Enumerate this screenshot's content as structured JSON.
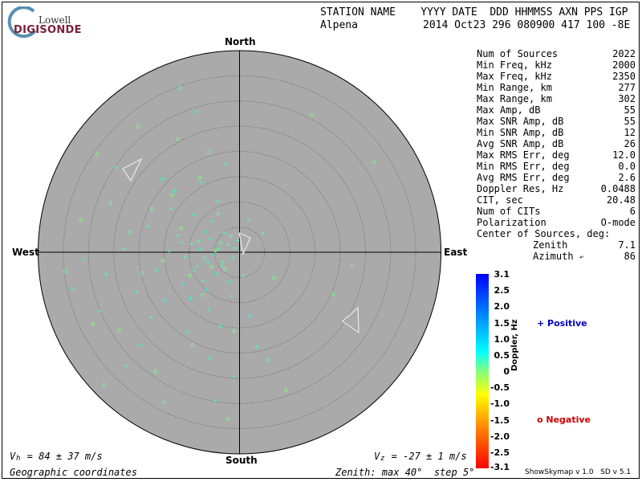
{
  "logo": {
    "top": "Lowell",
    "bottom": "DIGISONDE"
  },
  "header": {
    "line1": "STATION NAME    YYYY DATE  DDD HHMMSS AXN PPS IGP",
    "station": "Alpena",
    "line2_values": "2014 Oct23 296 080900 417 100 -8E"
  },
  "stats": [
    {
      "label": "Num of Sources",
      "value": "2022"
    },
    {
      "label": "Min Freq, kHz",
      "value": "2000"
    },
    {
      "label": "Max Freq, kHz",
      "value": "2350"
    },
    {
      "label": "Min Range, km",
      "value": "277"
    },
    {
      "label": "Max Range, km",
      "value": "302"
    },
    {
      "label": "Max Amp, dB",
      "value": "55"
    },
    {
      "label": "Max SNR Amp, dB",
      "value": "55"
    },
    {
      "label": "Min SNR Amp, dB",
      "value": "12"
    },
    {
      "label": "Avg SNR Amp, dB",
      "value": "26"
    },
    {
      "label": "Max RMS Err, deg",
      "value": "12.0"
    },
    {
      "label": "Min RMS Err, deg",
      "value": "0.0"
    },
    {
      "label": "Avg RMS Err, deg",
      "value": "2.6"
    },
    {
      "label": "Doppler Res, Hz",
      "value": "0.0488"
    },
    {
      "label": "CIT, sec",
      "value": "20.48"
    },
    {
      "label": "Num of CITs",
      "value": "6"
    },
    {
      "label": "Polarization",
      "value": "O-mode"
    }
  ],
  "center": {
    "title": "Center of Sources, deg:",
    "zenith_label": "Zenith",
    "zenith_value": "7.1",
    "azimuth_label": "Azimuth",
    "azimuth_value": "86"
  },
  "compass": {
    "north": "North",
    "south": "South",
    "east": "East",
    "west": "West"
  },
  "colorbar": {
    "title": "Doppler, Hz",
    "ticks": [
      "3.1",
      "2.5",
      "2.0",
      "1.5",
      "1.0",
      "0.5",
      "0",
      "-0.5",
      "-1.0",
      "-1.5",
      "-2.0",
      "-2.5",
      "-3.1"
    ]
  },
  "legend": {
    "positive": "+ Positive",
    "negative": "o Negative",
    "positive_color": "#0000cc",
    "negative_color": "#cc0000"
  },
  "footer": {
    "vh": "V  = 84 ± 37 m/s",
    "vh_sub": "h",
    "vz": "V  = -27 ± 1 m/s",
    "vz_sub": "z",
    "coords": "Geographic coordinates",
    "zenith_note": "Zenith: max 40°  step 5°",
    "version": "ShowSkymap v 1.0   SD v 5.1"
  },
  "chart_data": {
    "type": "scatter",
    "projection": "polar-skymap",
    "max_zenith_deg": 40,
    "zenith_step_deg": 5,
    "disk_color": "#aaaaaa",
    "num_sources": 2022,
    "center_of_sources": {
      "zenith_deg": 7.1,
      "azimuth_deg": 86
    },
    "doppler_range_hz": [
      -3.1,
      3.1
    ],
    "series": [
      {
        "name": "Positive",
        "marker": "+",
        "points": [
          {
            "x": -5.2,
            "y": -0.5,
            "d": 0.4
          },
          {
            "x": -4.1,
            "y": 0.8,
            "d": 0.3
          },
          {
            "x": -6.3,
            "y": -1.9,
            "d": 0.5
          },
          {
            "x": -3.5,
            "y": -2.7,
            "d": 0.3
          },
          {
            "x": -7.8,
            "y": 0.6,
            "d": 0.4
          },
          {
            "x": -2.4,
            "y": 1.5,
            "d": 0.2
          },
          {
            "x": -5.9,
            "y": 2.6,
            "d": 0.5
          },
          {
            "x": -8.4,
            "y": -2.8,
            "d": 0.3
          },
          {
            "x": -4.6,
            "y": -4.2,
            "d": 0.4
          },
          {
            "x": -1.3,
            "y": -1.1,
            "d": 0.3
          },
          {
            "x": -6.8,
            "y": 4.1,
            "d": 0.5
          },
          {
            "x": -9.5,
            "y": 1.7,
            "d": 0.3
          },
          {
            "x": -3.1,
            "y": 3.9,
            "d": 0.4
          },
          {
            "x": -0.4,
            "y": 2.4,
            "d": 0.3
          },
          {
            "x": -7.2,
            "y": -5.6,
            "d": 0.4
          },
          {
            "x": -10.8,
            "y": -0.9,
            "d": 0.3
          },
          {
            "x": -2.0,
            "y": -5.8,
            "d": 0.5
          },
          {
            "x": -5.5,
            "y": 6.2,
            "d": 0.4
          },
          {
            "x": -12.3,
            "y": 3.4,
            "d": 0.3
          },
          {
            "x": -8.9,
            "y": 7.5,
            "d": 0.4
          },
          {
            "x": -1.6,
            "y": -8.7,
            "d": 0.3
          },
          {
            "x": -11.1,
            "y": -6.4,
            "d": 0.5
          },
          {
            "x": -4.3,
            "y": 10.2,
            "d": 0.4
          },
          {
            "x": -14.0,
            "y": 0.2,
            "d": 0.3
          },
          {
            "x": -6.1,
            "y": -11.3,
            "d": 0.4
          },
          {
            "x": 0.8,
            "y": -4.6,
            "d": 0.3
          },
          {
            "x": -9.7,
            "y": -9.2,
            "d": 0.5
          },
          {
            "x": -13.6,
            "y": 8.8,
            "d": 0.3
          },
          {
            "x": -3.8,
            "y": -14.7,
            "d": 0.4
          },
          {
            "x": -16.4,
            "y": -3.5,
            "d": 0.3
          },
          {
            "x": -7.6,
            "y": 13.9,
            "d": 0.4
          },
          {
            "x": -18.2,
            "y": 5.1,
            "d": 0.3
          },
          {
            "x": -10.4,
            "y": -15.8,
            "d": 0.5
          },
          {
            "x": -2.7,
            "y": 17.6,
            "d": 0.4
          },
          {
            "x": -20.5,
            "y": -7.9,
            "d": 0.3
          },
          {
            "x": -15.3,
            "y": 14.6,
            "d": 0.4
          },
          {
            "x": -23.1,
            "y": 0.7,
            "d": 0.3
          },
          {
            "x": -5.8,
            "y": -20.9,
            "d": 0.4
          },
          {
            "x": -26.4,
            "y": -4.4,
            "d": 0.3
          },
          {
            "x": -1.2,
            "y": -24.6,
            "d": 0.4
          },
          {
            "x": -19.7,
            "y": -18.3,
            "d": 0.5
          },
          {
            "x": -27.8,
            "y": -11.6,
            "d": 0.3
          },
          {
            "x": -30.9,
            "y": -1.3,
            "d": 0.4
          },
          {
            "x": -22.6,
            "y": -22.5,
            "d": 0.3
          },
          {
            "x": -8.5,
            "y": 27.9,
            "d": 0.4
          },
          {
            "x": -33.2,
            "y": -7.2,
            "d": 0.3
          },
          {
            "x": -24.5,
            "y": 16.8,
            "d": 0.4
          },
          {
            "x": -4.9,
            "y": -29.4,
            "d": 0.3
          },
          {
            "x": 2.1,
            "y": -12.5,
            "d": 0.4
          },
          {
            "x": 3.4,
            "y": -18.7,
            "d": 0.3
          },
          {
            "x": 4.6,
            "y": 3.8,
            "d": 0.2
          },
          {
            "x": 1.9,
            "y": 6.4,
            "d": 0.3
          },
          {
            "x": -12.9,
            "y": 12.1,
            "d": 0.4
          },
          {
            "x": -17.6,
            "y": -12.8,
            "d": 0.3
          },
          {
            "x": -14.8,
            "y": -9.6,
            "d": 0.4
          },
          {
            "x": -11.5,
            "y": 1.9,
            "d": 0.3
          },
          {
            "x": -9.1,
            "y": -3.6,
            "d": 0.4
          },
          {
            "x": -3.3,
            "y": -1.8,
            "d": 0.2
          },
          {
            "x": -6.6,
            "y": -7.4,
            "d": 0.5
          },
          {
            "x": -0.9,
            "y": 0.9,
            "d": 0.3
          }
        ]
      },
      {
        "name": "Negative",
        "marker": "o",
        "points": [
          {
            "x": -4.8,
            "y": 0.3,
            "d": 0.0
          },
          {
            "x": -6.9,
            "y": -1.2,
            "d": 0.1
          },
          {
            "x": -2.9,
            "y": -3.4,
            "d": 0.0
          },
          {
            "x": -8.1,
            "y": 2.1,
            "d": 0.1
          },
          {
            "x": -5.6,
            "y": -2.9,
            "d": 0.0
          },
          {
            "x": -3.7,
            "y": 1.9,
            "d": 0.1
          },
          {
            "x": -9.9,
            "y": -4.6,
            "d": 0.0
          },
          {
            "x": -1.8,
            "y": 3.2,
            "d": 0.1
          },
          {
            "x": -11.6,
            "y": 4.7,
            "d": 0.0
          },
          {
            "x": -7.4,
            "y": -8.5,
            "d": 0.1
          },
          {
            "x": -15.2,
            "y": -1.7,
            "d": 0.0
          },
          {
            "x": -4.2,
            "y": 7.6,
            "d": 0.1
          },
          {
            "x": -13.4,
            "y": 11.3,
            "d": 0.0
          },
          {
            "x": -21.8,
            "y": 3.9,
            "d": 0.1
          },
          {
            "x": -9.3,
            "y": -18.4,
            "d": 0.0
          },
          {
            "x": -25.6,
            "y": 9.7,
            "d": 0.1
          },
          {
            "x": -29.1,
            "y": -14.2,
            "d": 0.0
          },
          {
            "x": -6.2,
            "y": 19.8,
            "d": 0.1
          },
          {
            "x": -31.5,
            "y": 6.3,
            "d": 0.0
          },
          {
            "x": -16.7,
            "y": -23.7,
            "d": 0.1
          },
          {
            "x": -12.2,
            "y": 22.4,
            "d": 0.0
          },
          {
            "x": -34.6,
            "y": -3.8,
            "d": 0.1
          },
          {
            "x": -20.1,
            "y": 24.9,
            "d": 0.0
          },
          {
            "x": -2.3,
            "y": -33.1,
            "d": 0.1
          },
          {
            "x": -28.3,
            "y": 19.4,
            "d": 0.0
          },
          {
            "x": -11.8,
            "y": 32.6,
            "d": 0.1
          },
          {
            "x": 14.3,
            "y": 27.2,
            "d": 0.0
          },
          {
            "x": 26.7,
            "y": 17.9,
            "d": 0.1
          },
          {
            "x": -26.9,
            "y": -26.3,
            "d": 0.0
          },
          {
            "x": -14.9,
            "y": -29.8,
            "d": 0.1
          },
          {
            "x": 22.4,
            "y": -2.6,
            "d": 0.0
          },
          {
            "x": 18.6,
            "y": -8.3,
            "d": 0.1
          },
          {
            "x": 9.2,
            "y": -27.4,
            "d": 0.0
          },
          {
            "x": 6.8,
            "y": -5.1,
            "d": 0.1
          },
          {
            "x": -1.1,
            "y": -15.6,
            "d": 0.0
          },
          {
            "x": -19.3,
            "y": -4.1,
            "d": 0.1
          },
          {
            "x": -23.9,
            "y": -15.5,
            "d": 0.0
          },
          {
            "x": -17.4,
            "y": 8.6,
            "d": 0.1
          },
          {
            "x": -7.9,
            "y": 14.8,
            "d": 0.0
          },
          {
            "x": 5.6,
            "y": -21.3,
            "d": 0.1
          }
        ]
      }
    ]
  }
}
